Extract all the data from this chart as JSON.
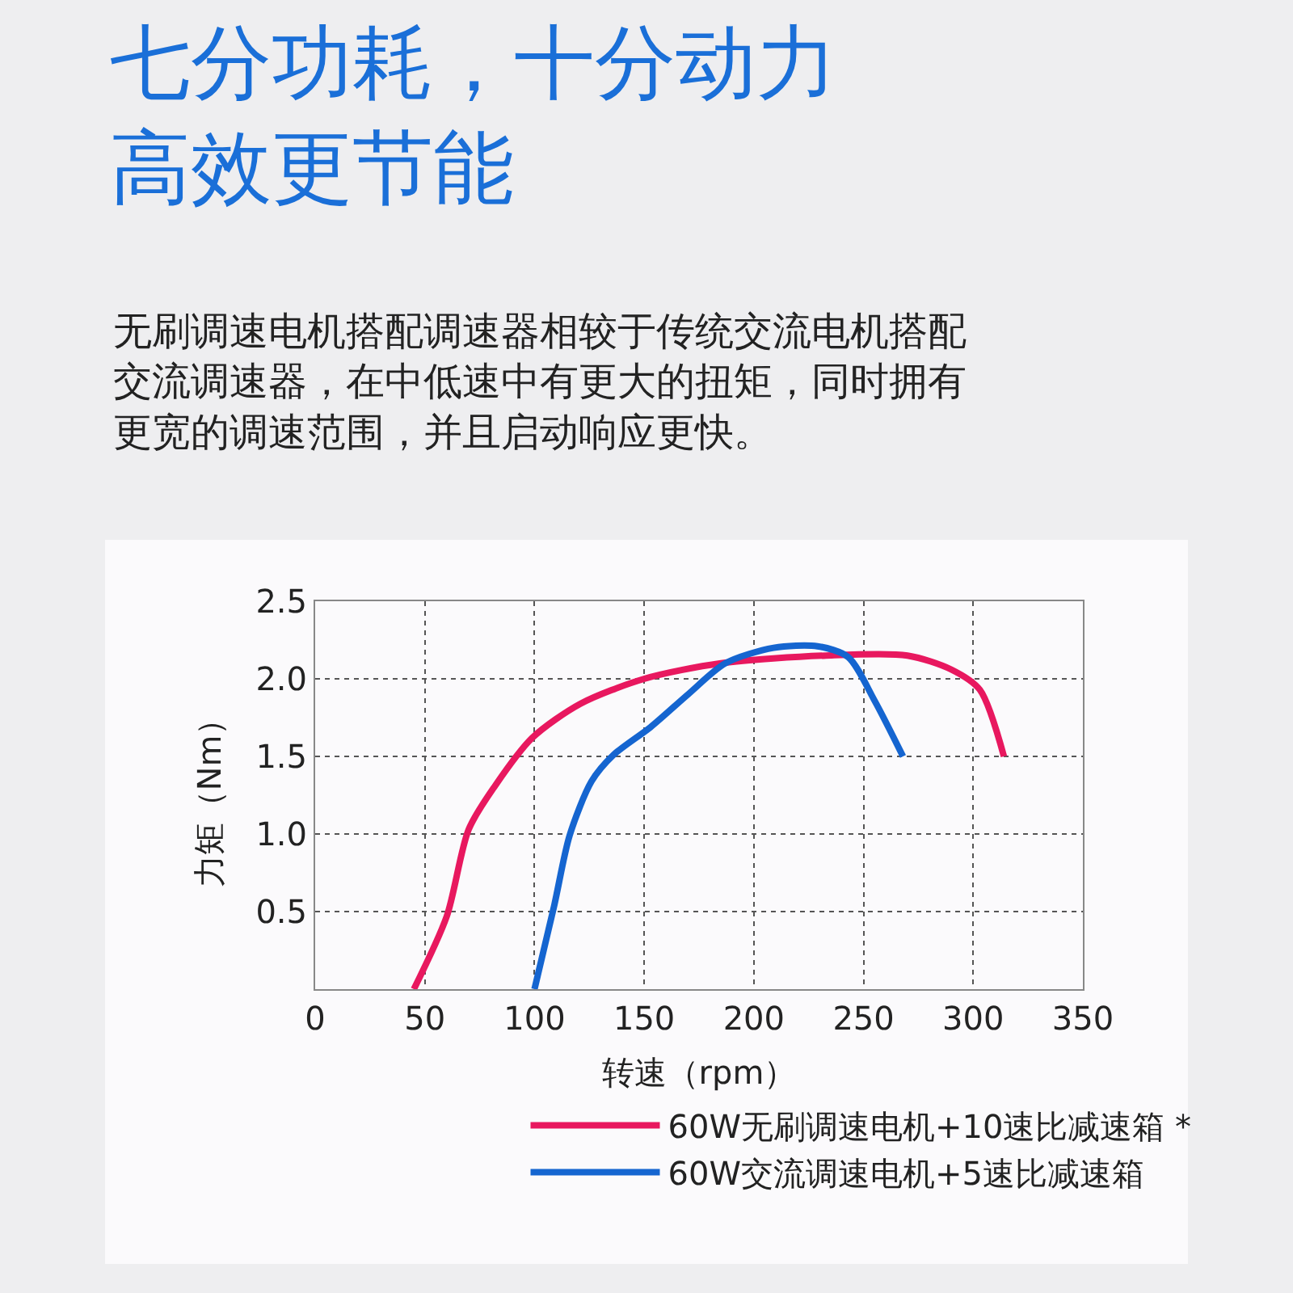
{
  "chart_data": {
    "type": "line",
    "title": "七分功耗，十分动力高效更节能",
    "subtitle": "无刷调速电机搭配调速器相较于传统交流电机搭配交流调速器，在中低速中有更大的扭矩，同时拥有更宽的调速范围，并且启动响应更快。",
    "xlabel": "转速（rpm）",
    "ylabel": "力矩（Nm）",
    "xlim": [
      0,
      350
    ],
    "xticks": [
      0,
      50,
      100,
      150,
      200,
      250,
      300,
      350
    ],
    "ylim": [
      0,
      2.5
    ],
    "yticks": [
      0.5,
      {
        "value": 1,
        "label": "1.0"
      },
      1.5,
      {
        "value": 2,
        "label": "2.0"
      },
      2.5
    ],
    "grid": true,
    "legend": "bottom",
    "marker": "none",
    "line_style": "solid",
    "series": [
      {
        "name": "60W无刷调速电机+10速比减速箱 *",
        "color": "#e8185f",
        "x": [
          45,
          60,
          70,
          82,
          99,
          121,
          150,
          185,
          233,
          270,
          290,
          303,
          314
        ],
        "values": [
          0,
          0.47,
          1.03,
          1.31,
          1.62,
          1.84,
          2.0,
          2.1,
          2.15,
          2.15,
          2.06,
          1.93,
          1.5
        ]
      },
      {
        "name": "60W交流调速电机+5速比减速箱",
        "color": "#1565d0",
        "x": [
          100,
          109,
          116,
          126,
          136,
          153,
          170,
          187,
          209,
          229,
          243,
          255,
          268
        ],
        "values": [
          0,
          0.54,
          0.99,
          1.34,
          1.51,
          1.69,
          1.9,
          2.1,
          2.2,
          2.21,
          2.14,
          1.86,
          1.5
        ]
      }
    ]
  }
}
